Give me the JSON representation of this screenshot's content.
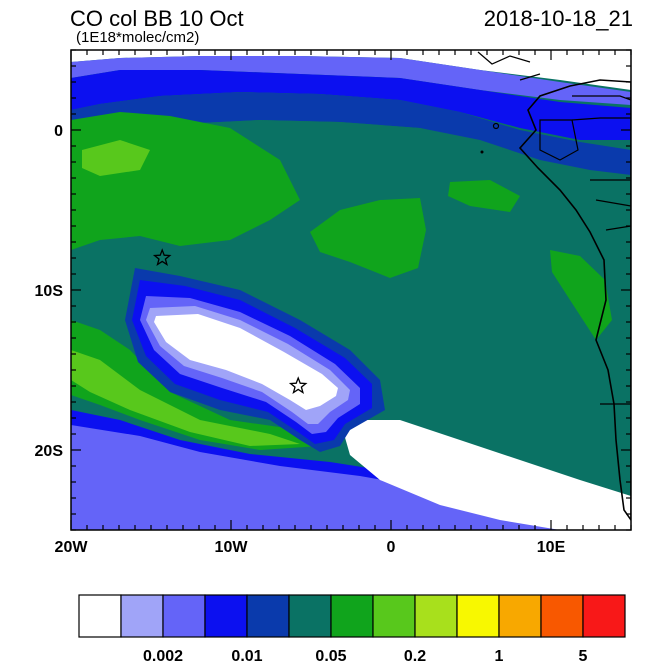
{
  "title": "CO col BB 10 Oct",
  "subtitle": "(1E18*molec/cm2)",
  "timestamp": "2018-10-18_21",
  "axes": {
    "x_ticks": [
      {
        "value": -20,
        "label": "20W"
      },
      {
        "value": -10,
        "label": "10W"
      },
      {
        "value": 0,
        "label": "0"
      },
      {
        "value": 10,
        "label": "10E"
      }
    ],
    "y_ticks": [
      {
        "value": 0,
        "label": "0"
      },
      {
        "value": -10,
        "label": "10S"
      },
      {
        "value": -20,
        "label": "20S"
      }
    ],
    "lon_range": [
      -20,
      15
    ],
    "lat_range": [
      -25,
      5
    ]
  },
  "markers": [
    {
      "name": "star-marker-north",
      "lon": -14.3,
      "lat": -8.0
    },
    {
      "name": "star-marker-south",
      "lon": -5.8,
      "lat": -16.0
    }
  ],
  "colorbar": {
    "colors": [
      "#ffffff",
      "#a0a4f8",
      "#6464f8",
      "#0c10f0",
      "#0a3aac",
      "#0a7264",
      "#10a41c",
      "#58c81c",
      "#a8e01c",
      "#f8f800",
      "#f8a800",
      "#f85800",
      "#f81818"
    ],
    "labels": [
      {
        "after_box": 2,
        "text": "0.002"
      },
      {
        "after_box": 4,
        "text": "0.01"
      },
      {
        "after_box": 6,
        "text": "0.05"
      },
      {
        "after_box": 8,
        "text": "0.2"
      },
      {
        "after_box": 10,
        "text": "1"
      },
      {
        "after_box": 12,
        "text": "5"
      }
    ]
  }
}
